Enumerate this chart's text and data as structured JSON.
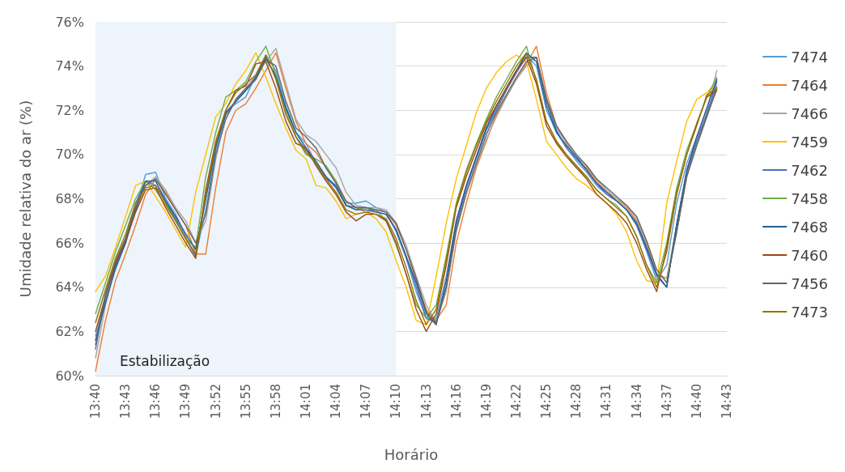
{
  "chart_data": {
    "type": "line",
    "xlabel": "Horário",
    "ylabel": "Umidade relativa do ar (%)",
    "categories": [
      "13:40",
      null,
      null,
      "13:43",
      null,
      null,
      "13:46",
      null,
      null,
      "13:49",
      null,
      null,
      "13:52",
      null,
      null,
      "13:55",
      null,
      null,
      "13:58",
      null,
      null,
      "14:01",
      null,
      null,
      "14:04",
      null,
      null,
      "14:07",
      null,
      null,
      "14:10",
      null,
      null,
      "14:13",
      null,
      null,
      "14:16",
      null,
      null,
      "14:19",
      null,
      null,
      "14:22",
      null,
      null,
      "14:25",
      null,
      null,
      "14:28",
      null,
      null,
      "14:31",
      null,
      null,
      "14:34",
      null,
      null,
      "14:37",
      null,
      null,
      "14:40",
      null,
      null,
      "14:43"
    ],
    "ylim": [
      60,
      76
    ],
    "yticks": [
      {
        "value": 60,
        "label": "60%"
      },
      {
        "value": 62,
        "label": "62%"
      },
      {
        "value": 64,
        "label": "64%"
      },
      {
        "value": 66,
        "label": "66%"
      },
      {
        "value": 68,
        "label": "68%"
      },
      {
        "value": 70,
        "label": "70%"
      },
      {
        "value": 72,
        "label": "72%"
      },
      {
        "value": 74,
        "label": "74%"
      },
      {
        "value": 76,
        "label": "76%"
      }
    ],
    "grid": "y",
    "legend": "right",
    "marker": "none",
    "line_style": "solid",
    "bands": [
      {
        "axis": "x",
        "from": "13:40",
        "to": "14:10",
        "label": "Estabilização",
        "color": "#edf4fb"
      }
    ],
    "series": [
      {
        "name": "7474",
        "color": "#5b9bd5",
        "values": [
          61.8,
          63.4,
          64.8,
          66.0,
          67.6,
          69.1,
          69.2,
          68.0,
          67.3,
          66.3,
          65.4,
          67.5,
          70.2,
          71.9,
          72.3,
          72.6,
          73.6,
          74.5,
          73.8,
          72.2,
          71.0,
          70.5,
          69.6,
          69.0,
          68.6,
          67.8,
          67.8,
          67.9,
          67.6,
          67.4,
          66.5,
          65.3,
          63.8,
          62.6,
          62.6,
          64.5,
          67.0,
          68.6,
          69.9,
          71.2,
          72.1,
          73.0,
          73.8,
          74.5,
          74.0,
          72.0,
          71.0,
          70.3,
          69.7,
          69.2,
          68.6,
          68.2,
          67.9,
          67.5,
          66.8,
          65.6,
          64.3,
          65.0,
          67.8,
          69.6,
          70.8,
          71.9,
          73.1,
          null
        ]
      },
      {
        "name": "7464",
        "color": "#ed7d31",
        "values": [
          60.2,
          62.5,
          64.3,
          65.5,
          66.8,
          68.2,
          68.9,
          68.3,
          67.5,
          66.8,
          65.5,
          65.5,
          68.5,
          71.0,
          72.0,
          72.3,
          73.0,
          73.8,
          74.6,
          73.0,
          71.5,
          70.5,
          70.1,
          69.4,
          68.8,
          67.9,
          67.6,
          67.4,
          67.5,
          67.4,
          66.8,
          65.7,
          64.3,
          63.0,
          62.5,
          63.2,
          66.0,
          67.8,
          69.4,
          70.6,
          71.8,
          72.6,
          73.4,
          74.1,
          74.9,
          72.8,
          71.3,
          70.5,
          69.8,
          69.4,
          68.8,
          68.3,
          68.0,
          67.6,
          67.0,
          66.0,
          64.6,
          64.4,
          66.5,
          69.0,
          70.5,
          71.8,
          72.9,
          null
        ]
      },
      {
        "name": "7466",
        "color": "#a5a5a5",
        "values": [
          60.8,
          63.2,
          64.9,
          66.1,
          67.4,
          68.6,
          69.0,
          68.4,
          67.6,
          67.0,
          66.0,
          67.0,
          69.8,
          71.8,
          72.4,
          73.0,
          73.6,
          74.2,
          74.8,
          73.2,
          71.6,
          70.9,
          70.6,
          70.0,
          69.4,
          68.3,
          67.7,
          67.6,
          67.6,
          67.5,
          66.9,
          65.9,
          64.5,
          63.2,
          62.4,
          63.8,
          66.5,
          68.2,
          69.5,
          70.7,
          71.7,
          72.6,
          73.4,
          74.0,
          74.4,
          72.6,
          71.2,
          70.5,
          69.9,
          69.5,
          68.9,
          68.4,
          68.0,
          67.7,
          67.1,
          65.9,
          64.5,
          64.4,
          66.8,
          69.2,
          70.6,
          72.0,
          73.8,
          null
        ]
      },
      {
        "name": "7459",
        "color": "#ffc000",
        "values": [
          63.8,
          64.5,
          65.8,
          67.2,
          68.6,
          68.8,
          68.1,
          67.4,
          66.6,
          65.8,
          68.3,
          70.0,
          71.7,
          72.3,
          73.2,
          73.8,
          74.6,
          73.5,
          72.3,
          71.2,
          70.2,
          69.8,
          68.6,
          68.5,
          67.9,
          67.1,
          67.3,
          67.4,
          67.1,
          66.5,
          65.2,
          64.0,
          62.5,
          62.3,
          64.5,
          66.9,
          68.9,
          70.4,
          71.9,
          73.0,
          73.7,
          74.2,
          74.5,
          74.2,
          72.5,
          70.6,
          70.0,
          69.4,
          68.9,
          68.6,
          68.2,
          67.8,
          67.3,
          66.5,
          65.2,
          64.3,
          64.2,
          67.8,
          69.7,
          71.5,
          72.5,
          72.8,
          73.3,
          null
        ]
      },
      {
        "name": "7462",
        "color": "#4472c4",
        "values": [
          61.2,
          63.6,
          65.0,
          66.2,
          67.8,
          68.8,
          68.6,
          67.9,
          67.1,
          66.2,
          65.4,
          68.0,
          70.3,
          71.8,
          72.4,
          72.9,
          73.4,
          74.3,
          73.6,
          72.0,
          70.8,
          70.2,
          69.6,
          68.9,
          68.6,
          67.7,
          67.6,
          67.6,
          67.4,
          67.3,
          66.6,
          65.4,
          64.0,
          62.6,
          62.4,
          64.0,
          66.8,
          68.5,
          69.8,
          71.1,
          72.0,
          72.9,
          73.7,
          74.4,
          74.4,
          72.4,
          71.1,
          70.3,
          69.8,
          69.3,
          68.7,
          68.2,
          67.9,
          67.5,
          66.8,
          65.7,
          64.5,
          64.0,
          66.9,
          69.2,
          70.6,
          71.8,
          73.3,
          null
        ]
      },
      {
        "name": "7458",
        "color": "#70ad47",
        "values": [
          62.8,
          64.2,
          65.6,
          66.8,
          68.0,
          68.8,
          68.4,
          67.7,
          67.0,
          66.2,
          65.8,
          69.0,
          71.0,
          72.6,
          72.9,
          73.3,
          74.2,
          74.9,
          73.6,
          72.0,
          70.8,
          70.0,
          69.8,
          69.5,
          68.8,
          67.7,
          67.5,
          67.6,
          67.5,
          67.0,
          65.9,
          64.6,
          63.2,
          62.6,
          63.2,
          65.4,
          67.8,
          69.3,
          70.5,
          71.6,
          72.6,
          73.4,
          74.2,
          74.9,
          73.3,
          71.5,
          70.6,
          70.0,
          69.4,
          69.0,
          68.4,
          68.0,
          67.7,
          67.2,
          66.3,
          65.0,
          64.2,
          66.0,
          68.5,
          70.2,
          71.4,
          72.6,
          73.5,
          null
        ]
      },
      {
        "name": "7468",
        "color": "#255e91",
        "values": [
          61.6,
          63.3,
          64.9,
          66.0,
          67.5,
          68.8,
          68.8,
          67.9,
          67.2,
          66.4,
          65.7,
          68.0,
          70.4,
          71.9,
          72.4,
          72.9,
          73.5,
          74.4,
          73.5,
          72.1,
          71.0,
          70.3,
          69.7,
          69.0,
          68.5,
          67.7,
          67.5,
          67.5,
          67.4,
          67.3,
          66.6,
          65.4,
          64.2,
          62.8,
          62.3,
          64.3,
          67.0,
          68.6,
          69.9,
          71.2,
          72.2,
          73.0,
          73.8,
          74.6,
          74.2,
          72.2,
          71.0,
          70.4,
          69.9,
          69.3,
          68.7,
          68.3,
          67.9,
          67.5,
          66.9,
          65.8,
          64.6,
          64.0,
          66.8,
          69.3,
          70.8,
          72.1,
          73.4,
          null
        ]
      },
      {
        "name": "7460",
        "color": "#9e480e",
        "values": [
          62.0,
          63.6,
          65.1,
          66.1,
          67.4,
          68.4,
          68.5,
          67.6,
          66.8,
          66.0,
          65.3,
          68.4,
          70.6,
          72.0,
          72.9,
          73.1,
          74.1,
          74.2,
          73.0,
          71.5,
          70.5,
          70.3,
          69.5,
          68.8,
          68.2,
          67.4,
          67.0,
          67.3,
          67.3,
          67.0,
          66.0,
          64.6,
          63.0,
          62.0,
          62.8,
          65.0,
          67.6,
          69.0,
          70.2,
          71.4,
          72.2,
          73.0,
          73.8,
          74.4,
          73.2,
          71.3,
          70.5,
          69.9,
          69.4,
          68.9,
          68.2,
          67.8,
          67.4,
          66.9,
          66.0,
          64.8,
          63.8,
          65.8,
          68.3,
          70.0,
          71.4,
          72.6,
          72.9,
          null
        ]
      },
      {
        "name": "7456",
        "color": "#636363",
        "values": [
          61.4,
          63.7,
          65.2,
          66.2,
          67.6,
          68.6,
          68.9,
          68.2,
          67.5,
          66.8,
          66.0,
          67.3,
          70.0,
          71.6,
          72.5,
          73.0,
          73.4,
          74.3,
          74.0,
          72.4,
          71.2,
          70.8,
          70.3,
          69.4,
          68.7,
          67.9,
          67.6,
          67.6,
          67.5,
          67.4,
          66.9,
          65.7,
          64.4,
          62.9,
          62.4,
          64.0,
          66.6,
          68.3,
          69.6,
          70.9,
          71.9,
          72.7,
          73.5,
          74.2,
          74.4,
          72.5,
          71.3,
          70.6,
          70.0,
          69.5,
          68.9,
          68.5,
          68.1,
          67.7,
          67.2,
          66.1,
          64.8,
          64.2,
          66.5,
          69.0,
          70.4,
          71.7,
          73.0,
          null
        ]
      },
      {
        "name": "7473",
        "color": "#997300",
        "values": [
          62.4,
          63.9,
          65.3,
          66.4,
          67.8,
          68.5,
          68.6,
          67.8,
          67.0,
          66.2,
          65.5,
          68.2,
          70.5,
          72.0,
          72.8,
          73.2,
          73.6,
          74.5,
          73.4,
          71.8,
          70.8,
          70.1,
          69.6,
          68.9,
          68.3,
          67.5,
          67.3,
          67.4,
          67.3,
          67.1,
          66.2,
          64.9,
          63.4,
          62.3,
          63.0,
          65.2,
          67.7,
          69.2,
          70.4,
          71.5,
          72.4,
          73.2,
          74.0,
          74.6,
          73.4,
          71.5,
          70.6,
          70.0,
          69.5,
          69.0,
          68.4,
          68.0,
          67.6,
          67.2,
          66.3,
          65.0,
          64.0,
          65.6,
          68.2,
          70.0,
          71.3,
          72.7,
          73.0,
          null
        ]
      }
    ]
  }
}
